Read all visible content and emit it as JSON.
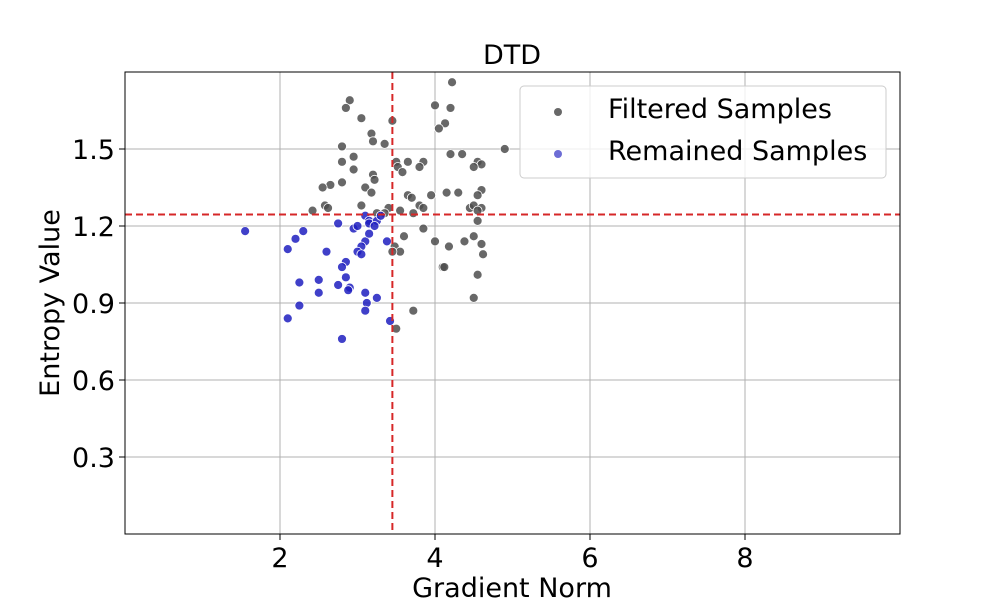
{
  "chart_data": {
    "type": "scatter",
    "title": "DTD",
    "xlabel": "Gradient Norm",
    "ylabel": "Entropy Value",
    "xlim": [
      0,
      10
    ],
    "ylim": [
      0,
      1.8
    ],
    "xticks": [
      2,
      4,
      6,
      8
    ],
    "yticks": [
      0.3,
      0.6,
      0.9,
      1.2,
      1.5
    ],
    "xtick_labels": [
      "2",
      "4",
      "6",
      "8"
    ],
    "ytick_labels": [
      "0.3",
      "0.6",
      "0.9",
      "1.2",
      "1.5"
    ],
    "grid": true,
    "legend_position": "top-right",
    "thresholds": {
      "x": 3.45,
      "y": 1.245,
      "color": "#d62728"
    },
    "series": [
      {
        "name": "Filtered Samples",
        "color": "#4d4d4d",
        "points": [
          [
            4.22,
            1.76
          ],
          [
            2.9,
            1.69
          ],
          [
            2.85,
            1.66
          ],
          [
            3.05,
            1.62
          ],
          [
            3.45,
            1.61
          ],
          [
            4.0,
            1.67
          ],
          [
            4.2,
            1.66
          ],
          [
            4.13,
            1.6
          ],
          [
            4.05,
            1.58
          ],
          [
            3.18,
            1.56
          ],
          [
            3.2,
            1.53
          ],
          [
            2.8,
            1.51
          ],
          [
            3.35,
            1.52
          ],
          [
            2.95,
            1.47
          ],
          [
            3.5,
            1.45
          ],
          [
            2.8,
            1.45
          ],
          [
            4.2,
            1.48
          ],
          [
            4.35,
            1.48
          ],
          [
            3.85,
            1.45
          ],
          [
            3.65,
            1.45
          ],
          [
            4.9,
            1.5
          ],
          [
            4.55,
            1.45
          ],
          [
            4.6,
            1.44
          ],
          [
            4.5,
            1.43
          ],
          [
            3.8,
            1.43
          ],
          [
            3.52,
            1.43
          ],
          [
            3.58,
            1.41
          ],
          [
            2.95,
            1.42
          ],
          [
            3.2,
            1.4
          ],
          [
            3.22,
            1.38
          ],
          [
            2.8,
            1.37
          ],
          [
            2.65,
            1.36
          ],
          [
            2.55,
            1.35
          ],
          [
            3.1,
            1.35
          ],
          [
            3.18,
            1.33
          ],
          [
            4.15,
            1.33
          ],
          [
            4.3,
            1.33
          ],
          [
            4.6,
            1.34
          ],
          [
            4.55,
            1.32
          ],
          [
            3.65,
            1.32
          ],
          [
            3.95,
            1.32
          ],
          [
            3.7,
            1.31
          ],
          [
            3.05,
            1.28
          ],
          [
            3.4,
            1.27
          ],
          [
            3.55,
            1.26
          ],
          [
            3.8,
            1.28
          ],
          [
            3.85,
            1.27
          ],
          [
            4.45,
            1.27
          ],
          [
            4.5,
            1.28
          ],
          [
            4.6,
            1.27
          ],
          [
            4.55,
            1.26
          ],
          [
            2.58,
            1.28
          ],
          [
            2.62,
            1.27
          ],
          [
            2.42,
            1.26
          ],
          [
            3.72,
            1.25
          ],
          [
            3.25,
            1.25
          ],
          [
            3.35,
            1.25
          ],
          [
            4.55,
            1.22
          ],
          [
            3.85,
            1.19
          ],
          [
            4.5,
            1.16
          ],
          [
            3.6,
            1.16
          ],
          [
            4.38,
            1.14
          ],
          [
            4.6,
            1.13
          ],
          [
            4.0,
            1.14
          ],
          [
            4.18,
            1.12
          ],
          [
            3.48,
            1.12
          ],
          [
            3.55,
            1.1
          ],
          [
            3.45,
            1.1
          ],
          [
            4.62,
            1.09
          ],
          [
            4.1,
            1.04
          ],
          [
            4.12,
            1.04
          ],
          [
            4.55,
            1.01
          ],
          [
            4.5,
            0.92
          ],
          [
            3.72,
            0.87
          ],
          [
            3.5,
            0.8
          ]
        ]
      },
      {
        "name": "Remained Samples",
        "color": "#1f1fbf",
        "points": [
          [
            1.55,
            1.18
          ],
          [
            2.1,
            1.11
          ],
          [
            2.2,
            1.15
          ],
          [
            2.3,
            1.18
          ],
          [
            2.6,
            1.1
          ],
          [
            2.75,
            1.21
          ],
          [
            2.95,
            1.19
          ],
          [
            3.0,
            1.2
          ],
          [
            3.1,
            1.24
          ],
          [
            3.15,
            1.22
          ],
          [
            3.15,
            1.21
          ],
          [
            3.25,
            1.22
          ],
          [
            3.3,
            1.24
          ],
          [
            3.22,
            1.2
          ],
          [
            3.1,
            1.14
          ],
          [
            3.15,
            1.17
          ],
          [
            3.05,
            1.12
          ],
          [
            3.0,
            1.1
          ],
          [
            3.05,
            1.09
          ],
          [
            2.85,
            1.06
          ],
          [
            2.8,
            1.04
          ],
          [
            3.38,
            1.14
          ],
          [
            2.5,
            0.99
          ],
          [
            2.85,
            1.0
          ],
          [
            2.75,
            0.97
          ],
          [
            2.9,
            0.96
          ],
          [
            2.88,
            0.95
          ],
          [
            2.25,
            0.98
          ],
          [
            2.5,
            0.94
          ],
          [
            2.25,
            0.89
          ],
          [
            3.1,
            0.94
          ],
          [
            3.25,
            0.92
          ],
          [
            3.12,
            0.9
          ],
          [
            3.1,
            0.87
          ],
          [
            2.1,
            0.84
          ],
          [
            3.42,
            0.83
          ],
          [
            2.8,
            0.76
          ]
        ]
      }
    ]
  }
}
